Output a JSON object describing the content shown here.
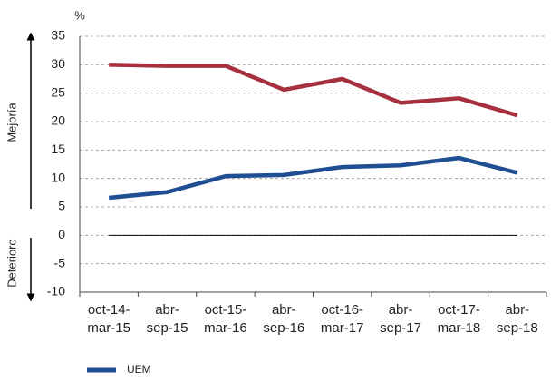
{
  "chart_data": {
    "type": "line",
    "y_unit_label": "%",
    "side_labels": [
      "Mejoría",
      "Deterioro"
    ],
    "categories": [
      [
        "oct-14-",
        "mar-15"
      ],
      [
        "abr-",
        "sep-15"
      ],
      [
        "oct-15-",
        "mar-16"
      ],
      [
        "abr-",
        "sep-16"
      ],
      [
        "oct-16-",
        "mar-17"
      ],
      [
        "abr-",
        "sep-17"
      ],
      [
        "oct-17-",
        "mar-18"
      ],
      [
        "abr-",
        "sep-18"
      ]
    ],
    "series": [
      {
        "color": "#a6303f",
        "values": [
          30,
          29.8,
          29.8,
          25.6,
          27.5,
          23.3,
          24.1,
          21.1
        ]
      },
      {
        "name": "UEM",
        "color": "#1f4e93",
        "values": [
          6.6,
          7.6,
          10.4,
          10.6,
          12.0,
          12.3,
          13.6,
          11.0
        ]
      }
    ],
    "ylim": [
      -10,
      35
    ],
    "yticks": [
      -10,
      -5,
      0,
      5,
      10,
      15,
      20,
      25,
      30,
      35
    ],
    "grid": true
  }
}
